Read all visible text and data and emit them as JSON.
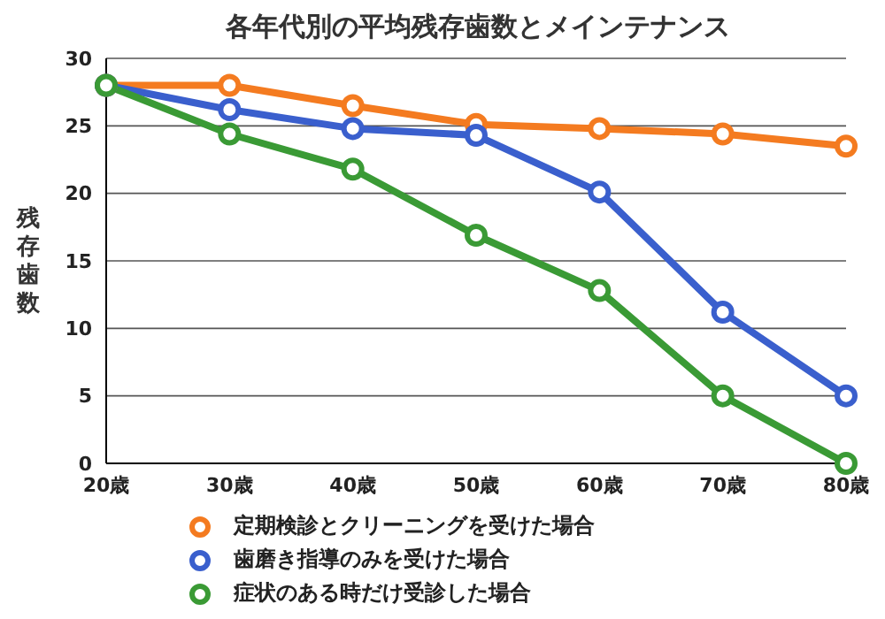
{
  "chart_data": {
    "type": "line",
    "title": "各年代別の平均残存歯数とメインテナンス",
    "ylabel": "残存歯数",
    "categories": [
      "20歳",
      "30歳",
      "40歳",
      "50歳",
      "60歳",
      "70歳",
      "80歳"
    ],
    "series": [
      {
        "name": "定期検診とクリーニングを受けた場合",
        "color": "#f47b20",
        "values": [
          28,
          28,
          26.5,
          25.1,
          24.8,
          24.4,
          23.5
        ]
      },
      {
        "name": "歯磨き指導のみを受けた場合",
        "color": "#3a5fcd",
        "values": [
          28,
          26.2,
          24.8,
          24.3,
          20.1,
          11.2,
          5
        ]
      },
      {
        "name": "症状のある時だけ受診した場合",
        "color": "#3a9a35",
        "values": [
          28,
          24.4,
          21.8,
          16.9,
          12.8,
          5,
          0
        ]
      }
    ],
    "ylim": [
      0,
      30
    ],
    "yticks": [
      0,
      5,
      10,
      15,
      20,
      25,
      30
    ],
    "grid": "y",
    "legend": "bottom",
    "marker": "circle",
    "line_style": "solid"
  }
}
